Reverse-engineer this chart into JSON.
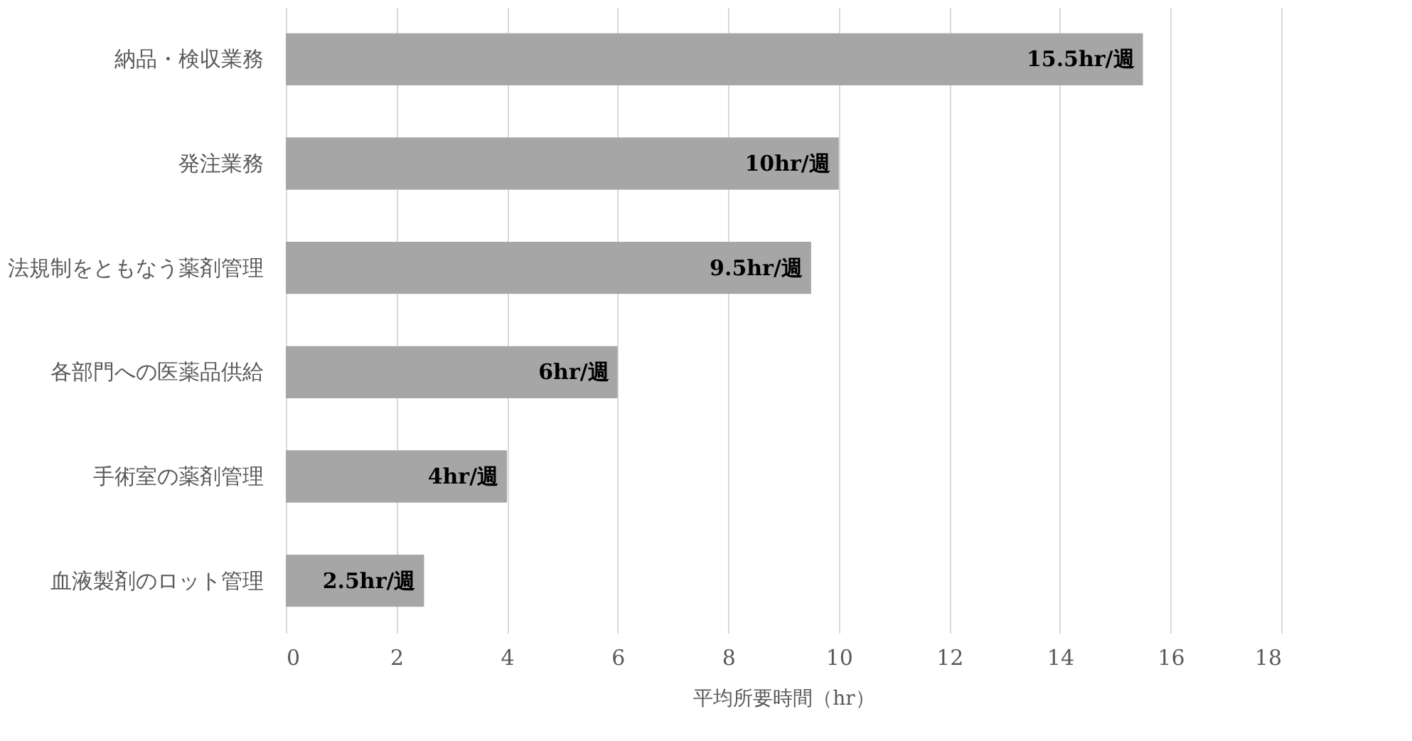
{
  "chart_data": {
    "type": "bar",
    "orientation": "horizontal",
    "xlabel": "平均所要時間（hr）",
    "categories": [
      "納品・検収業務",
      "発注業務",
      "法規制をともなう薬剤管理",
      "各部門への医薬品供給",
      "手術室の薬剤管理",
      "血液製剤のロット管理"
    ],
    "values": [
      15.5,
      10,
      9.5,
      6,
      4,
      2.5
    ],
    "value_labels": [
      "15.5hr/週",
      "10hr/週",
      "9.5hr/週",
      "6hr/週",
      "4hr/週",
      "2.5hr/週"
    ],
    "color": "#a6a6a6",
    "xlim": [
      0,
      18
    ],
    "xticks": [
      0,
      2,
      4,
      6,
      8,
      10,
      12,
      14,
      16,
      18
    ],
    "grid": "x"
  }
}
